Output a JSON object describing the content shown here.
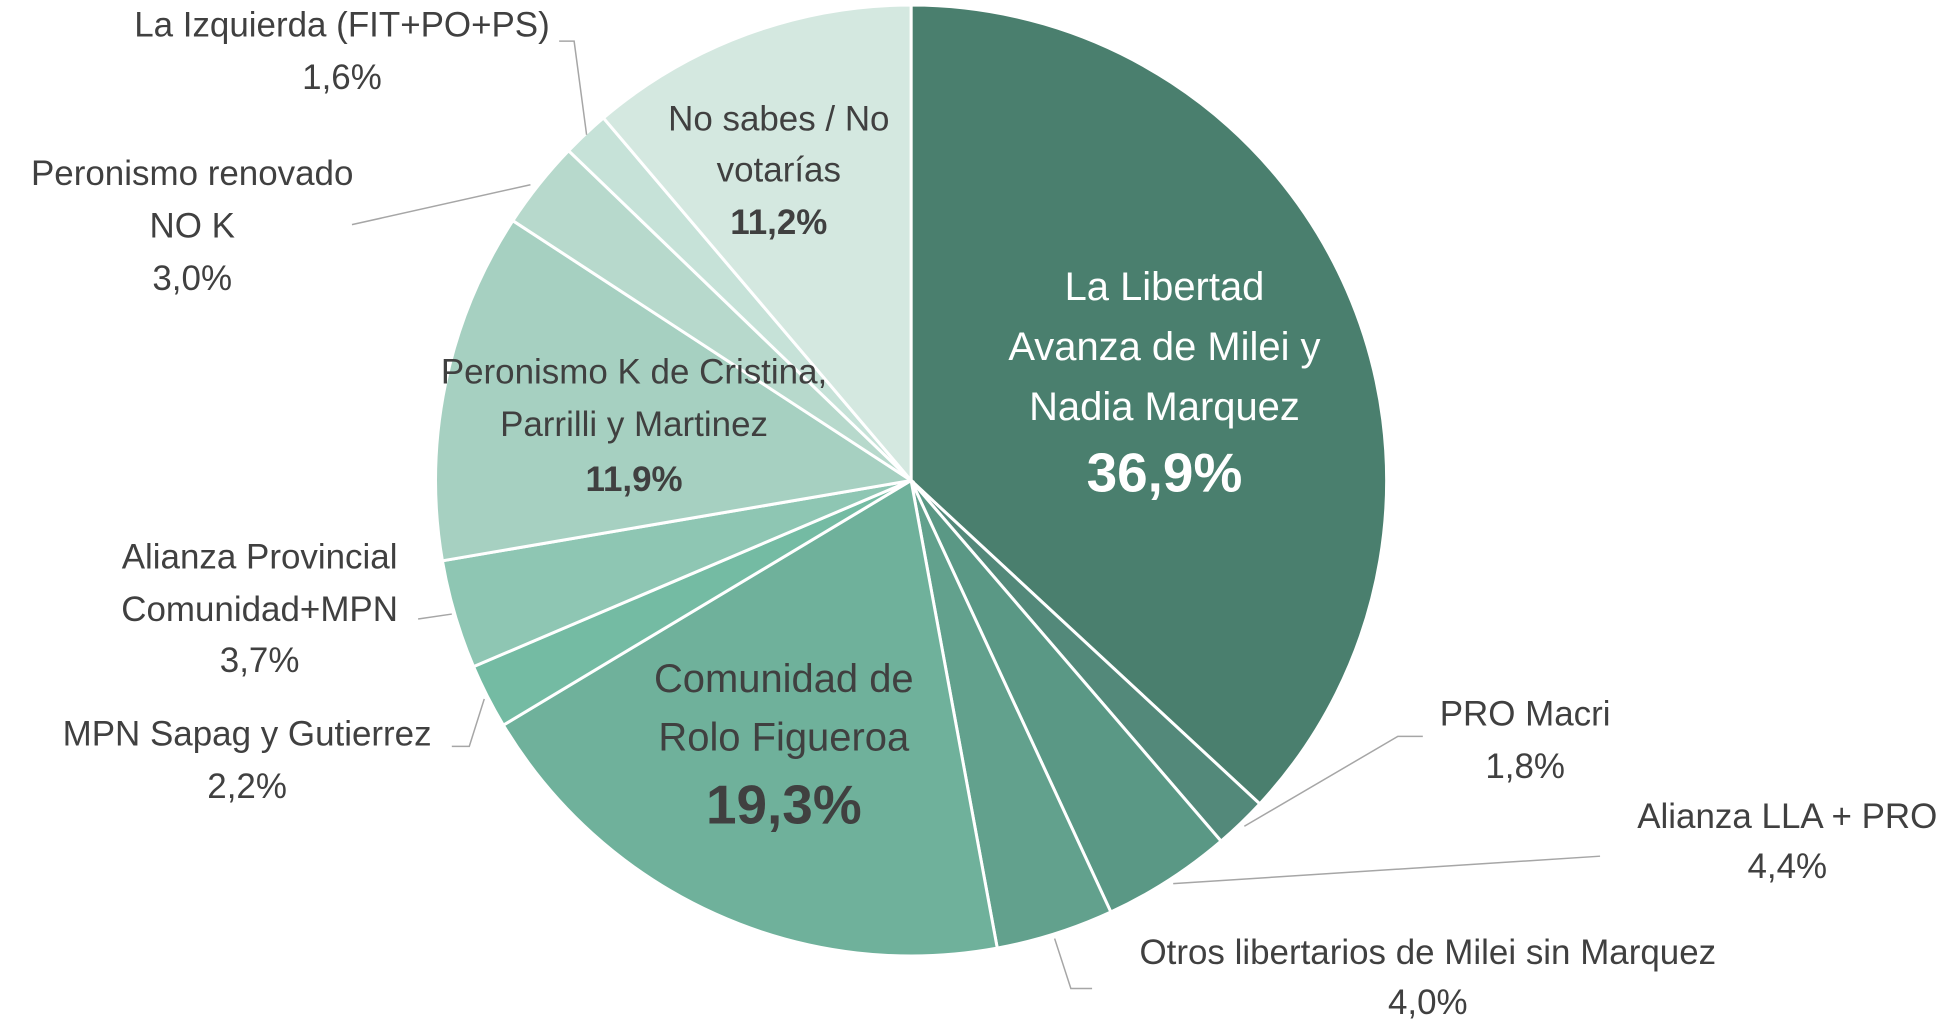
{
  "chart_data": {
    "type": "pie",
    "categories": [
      [
        "La Libertad",
        "Avanza de Milei y",
        "Nadia Marquez"
      ],
      [
        "PRO Macri"
      ],
      [
        "Alianza LLA + PRO"
      ],
      [
        "Otros libertarios de Milei sin Marquez"
      ],
      [
        "Comunidad de",
        "Rolo Figueroa"
      ],
      [
        "MPN Sapag y Gutierrez"
      ],
      [
        "Alianza Provincial",
        "Comunidad+MPN"
      ],
      [
        "Peronismo K de Cristina,",
        "Parrilli y Martinez"
      ],
      [
        "Peronismo renovado",
        "NO K"
      ],
      [
        "La Izquierda (FIT+PO+PS)"
      ],
      [
        "No sabes / No",
        "votarías"
      ]
    ],
    "values": [
      36.9,
      1.8,
      4.4,
      4.0,
      19.3,
      2.2,
      3.7,
      11.9,
      3.0,
      1.6,
      11.2
    ],
    "value_labels": [
      "36,9%",
      "1,8%",
      "4,4%",
      "4,0%",
      "19,3%",
      "2,2%",
      "3,7%",
      "11,9%",
      "3,0%",
      "1,6%",
      "11,2%"
    ],
    "colors": [
      "#4a7f6e",
      "#53897a",
      "#5a9885",
      "#62a18d",
      "#6fb19b",
      "#74bba3",
      "#8ec6b3",
      "#a6d0c1",
      "#b7d9cc",
      "#c6e2d8",
      "#d4e8e0"
    ]
  }
}
